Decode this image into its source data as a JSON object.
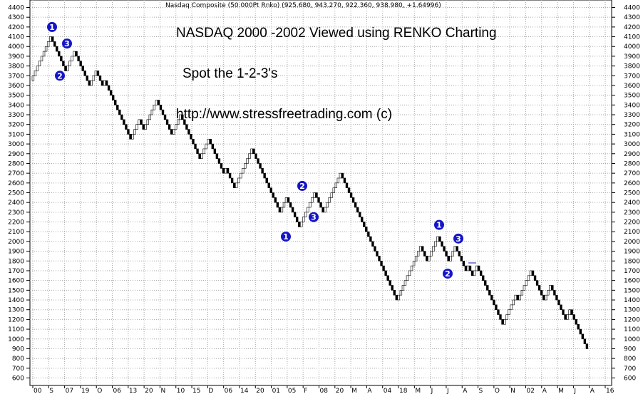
{
  "chart_data": {
    "type": "renko",
    "header": "Nasdaq Composite (50.000Pt Rnko)  (925.680, 943.270, 922.360, 938.980, +1.64996)",
    "annotations": [
      "NASDAQ 2000 -2002 Viewed using RENKO Charting",
      "Spot the 1-2-3's",
      "http://www.stressfreetrading.com (c)"
    ],
    "brick_size": 50,
    "y_range": [
      550,
      4450
    ],
    "y_ticks": [
      600,
      700,
      800,
      900,
      1000,
      1100,
      1200,
      1300,
      1400,
      1500,
      1600,
      1700,
      1800,
      1900,
      2000,
      2100,
      2200,
      2300,
      2400,
      2500,
      2600,
      2700,
      2800,
      2900,
      3000,
      3100,
      3200,
      3300,
      3400,
      3500,
      3600,
      3700,
      3800,
      3900,
      4000,
      4100,
      4200,
      4300,
      4400
    ],
    "x_ticks": [
      "00",
      "S",
      "07",
      "19",
      "O",
      "06",
      "13",
      "20",
      "N",
      "10",
      "15",
      "D",
      "06",
      "14",
      "20",
      "01",
      "05",
      "F",
      "08",
      "20",
      "M",
      "A",
      "04",
      "18",
      "M",
      "J",
      "J",
      "A",
      "S",
      "O",
      "N",
      "02",
      "A",
      "M",
      "J",
      "A",
      "16"
    ],
    "pivots": [
      3650,
      4100,
      3750,
      3950,
      3600,
      3750,
      3600,
      3650,
      3050,
      3250,
      3150,
      3450,
      3100,
      3300,
      2850,
      3050,
      2700,
      2750,
      2550,
      2950,
      2300,
      2450,
      2150,
      2500,
      2300,
      2700,
      2050,
      2000,
      1950,
      1400,
      1950,
      1800,
      2050,
      1800,
      1950,
      1700,
      1750,
      1650,
      1750,
      1150,
      1450,
      1400,
      1700,
      1400,
      1550,
      1200,
      1300,
      900
    ],
    "markers": [
      {
        "label": "1",
        "value": 4200
      },
      {
        "label": "3",
        "value": 4030
      },
      {
        "label": "2",
        "value": 3700
      },
      {
        "label": "2",
        "value": 2570
      },
      {
        "label": "1",
        "value": 2050
      },
      {
        "label": "3",
        "value": 2250
      },
      {
        "label": "1",
        "value": 2170
      },
      {
        "label": "3",
        "value": 2030
      },
      {
        "label": "2",
        "value": 1670
      }
    ],
    "colors": {
      "up": "#ffffff",
      "down": "#000000",
      "marker": "#1515c8",
      "grid": "#a8a8a8"
    }
  }
}
